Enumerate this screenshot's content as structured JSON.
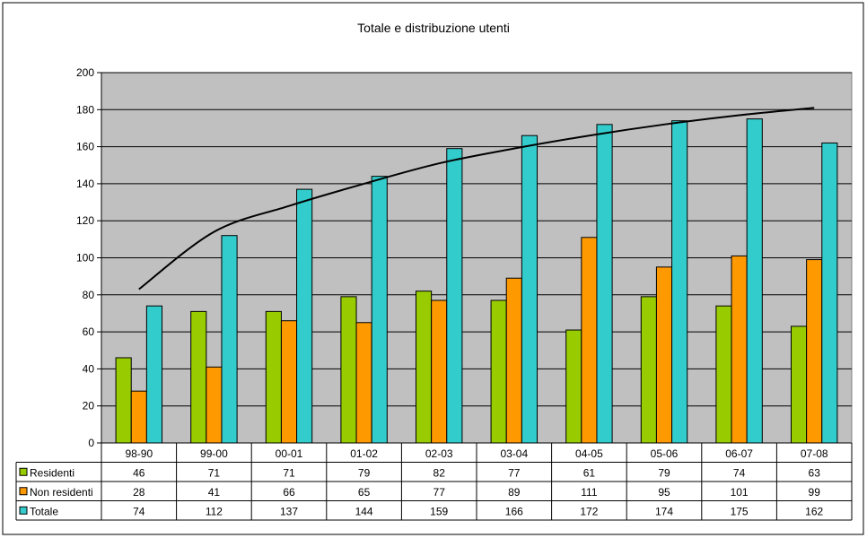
{
  "chart_data": {
    "type": "bar",
    "title": "Totale e distribuzione utenti",
    "categories": [
      "98-90",
      "99-00",
      "00-01",
      "01-02",
      "02-03",
      "03-04",
      "04-05",
      "05-06",
      "06-07",
      "07-08"
    ],
    "ylim": [
      0,
      200
    ],
    "yticks": [
      0,
      20,
      40,
      60,
      80,
      100,
      120,
      140,
      160,
      180,
      200
    ],
    "grid": true,
    "plot_background": "#c0c0c0",
    "series": [
      {
        "name": "Residenti",
        "color": "#99cc00",
        "values": [
          46,
          71,
          71,
          79,
          82,
          77,
          61,
          79,
          74,
          63
        ]
      },
      {
        "name": "Non residenti",
        "color": "#ff9900",
        "values": [
          28,
          41,
          66,
          65,
          77,
          89,
          111,
          95,
          101,
          99
        ]
      },
      {
        "name": "Totale",
        "color": "#33cccc",
        "values": [
          74,
          112,
          137,
          144,
          159,
          166,
          172,
          174,
          175,
          162
        ]
      }
    ],
    "trendline": {
      "type": "logarithmic",
      "series": "Totale",
      "color": "#000000",
      "values": [
        83,
        114,
        128,
        140,
        151,
        159,
        166,
        172,
        177,
        181
      ]
    },
    "data_table": true
  }
}
